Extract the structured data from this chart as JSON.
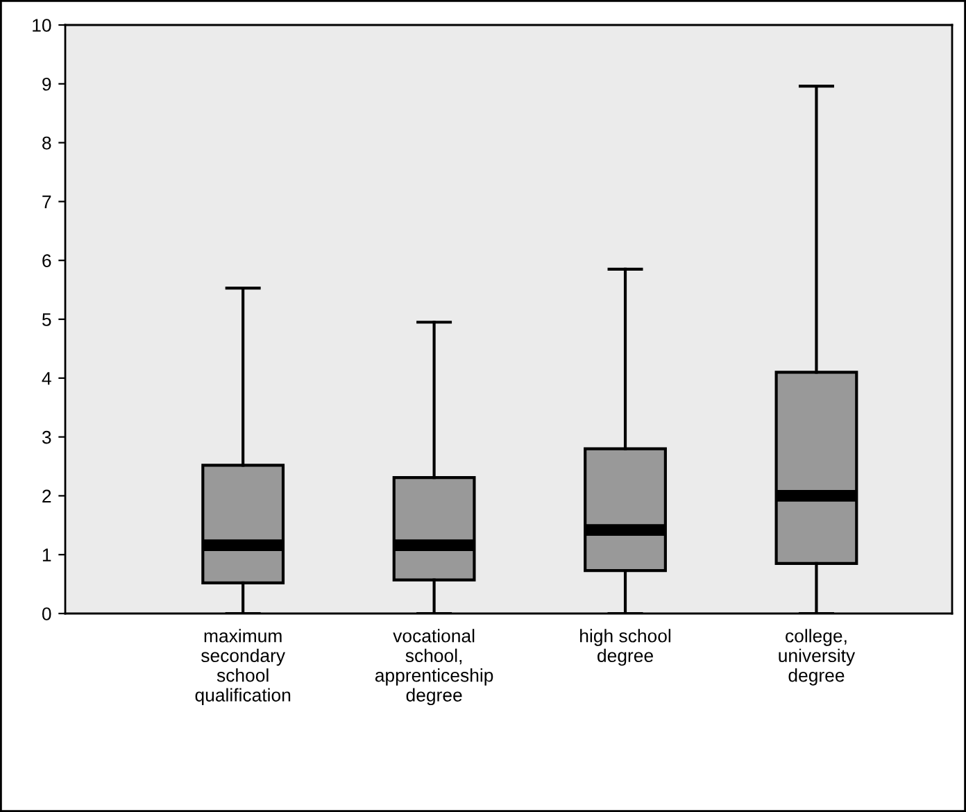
{
  "chart_data": {
    "type": "box",
    "categories": [
      "maximum\nsecondary\nschool\nqualification",
      "vocational\nschool,\napprenticeship\ndegree",
      "high school\ndegree",
      "college,\nuniversity\ndegree"
    ],
    "boxes": [
      {
        "low": 0,
        "q1": 0.52,
        "median": 1.16,
        "q3": 2.52,
        "high": 5.53
      },
      {
        "low": 0,
        "q1": 0.57,
        "median": 1.16,
        "q3": 2.31,
        "high": 4.95
      },
      {
        "low": 0,
        "q1": 0.73,
        "median": 1.42,
        "q3": 2.8,
        "high": 5.85
      },
      {
        "low": 0,
        "q1": 0.85,
        "median": 2.0,
        "q3": 4.1,
        "high": 8.96
      }
    ],
    "color": "#999999",
    "ylim": [
      0,
      10
    ],
    "yticks": [
      0,
      1,
      2,
      3,
      4,
      5,
      6,
      7,
      8,
      9,
      10
    ],
    "grid": false
  }
}
